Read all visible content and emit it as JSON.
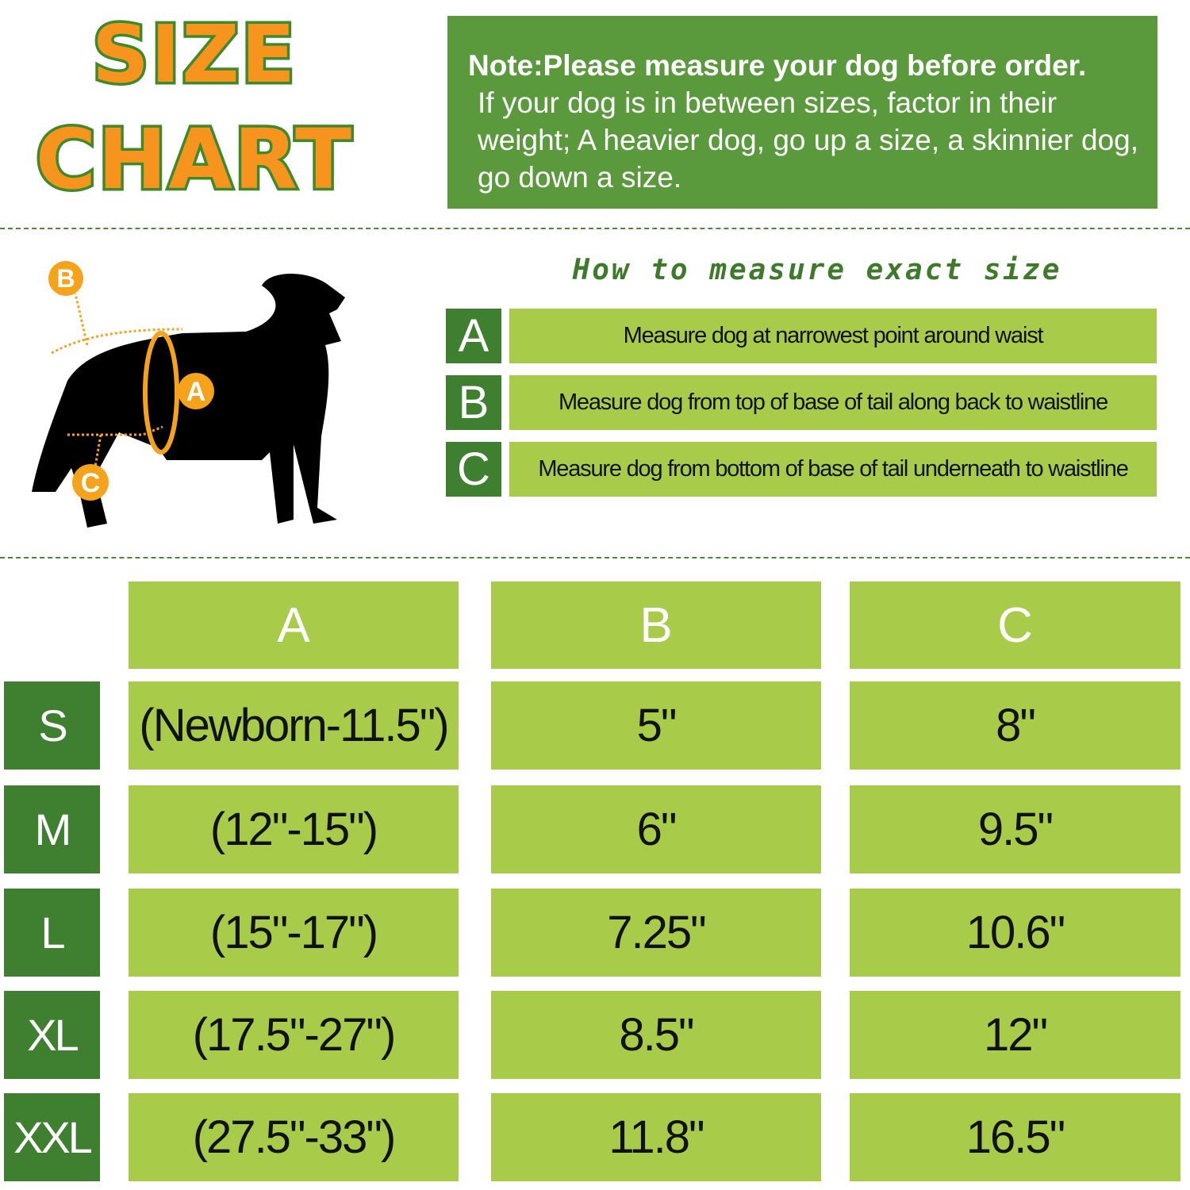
{
  "title": {
    "line1": "SIZE",
    "line2": "CHART"
  },
  "note": {
    "heading": "Note:Please measure your dog before order.",
    "body": "If your dog is in between sizes, factor in their weight; A heavier dog, go up a size, a skinnier dog, go down a size."
  },
  "diagram": {
    "labels": [
      "A",
      "B",
      "C"
    ],
    "accent": "#f7a21b"
  },
  "howto": {
    "title": "How to measure exact size",
    "items": [
      {
        "letter": "A",
        "text": "Measure dog at narrowest point around waist"
      },
      {
        "letter": "B",
        "text": "Measure dog from top of base of tail along back to waistline"
      },
      {
        "letter": "C",
        "text": "Measure dog from bottom of base of tail underneath to waistline"
      }
    ]
  },
  "table": {
    "headers": [
      "A",
      "B",
      "C"
    ],
    "rows": [
      {
        "size": "S",
        "a": "(Newborn-11.5\")",
        "b": "5\"",
        "c": "8\""
      },
      {
        "size": "M",
        "a": "(12\"-15\")",
        "b": "6\"",
        "c": "9.5\""
      },
      {
        "size": "L",
        "a": "(15\"-17\")",
        "b": "7.25\"",
        "c": "10.6\""
      },
      {
        "size": "XL",
        "a": "(17.5\"-27\")",
        "b": "8.5\"",
        "c": "12\""
      },
      {
        "size": "XXL",
        "a": "(27.5\"-33\")",
        "b": "11.8\"",
        "c": "16.5\""
      }
    ]
  },
  "colors": {
    "dark_green": "#3f7f30",
    "note_green": "#5a9a3c",
    "light_green": "#a8cc4a",
    "orange": "#f7941d"
  }
}
